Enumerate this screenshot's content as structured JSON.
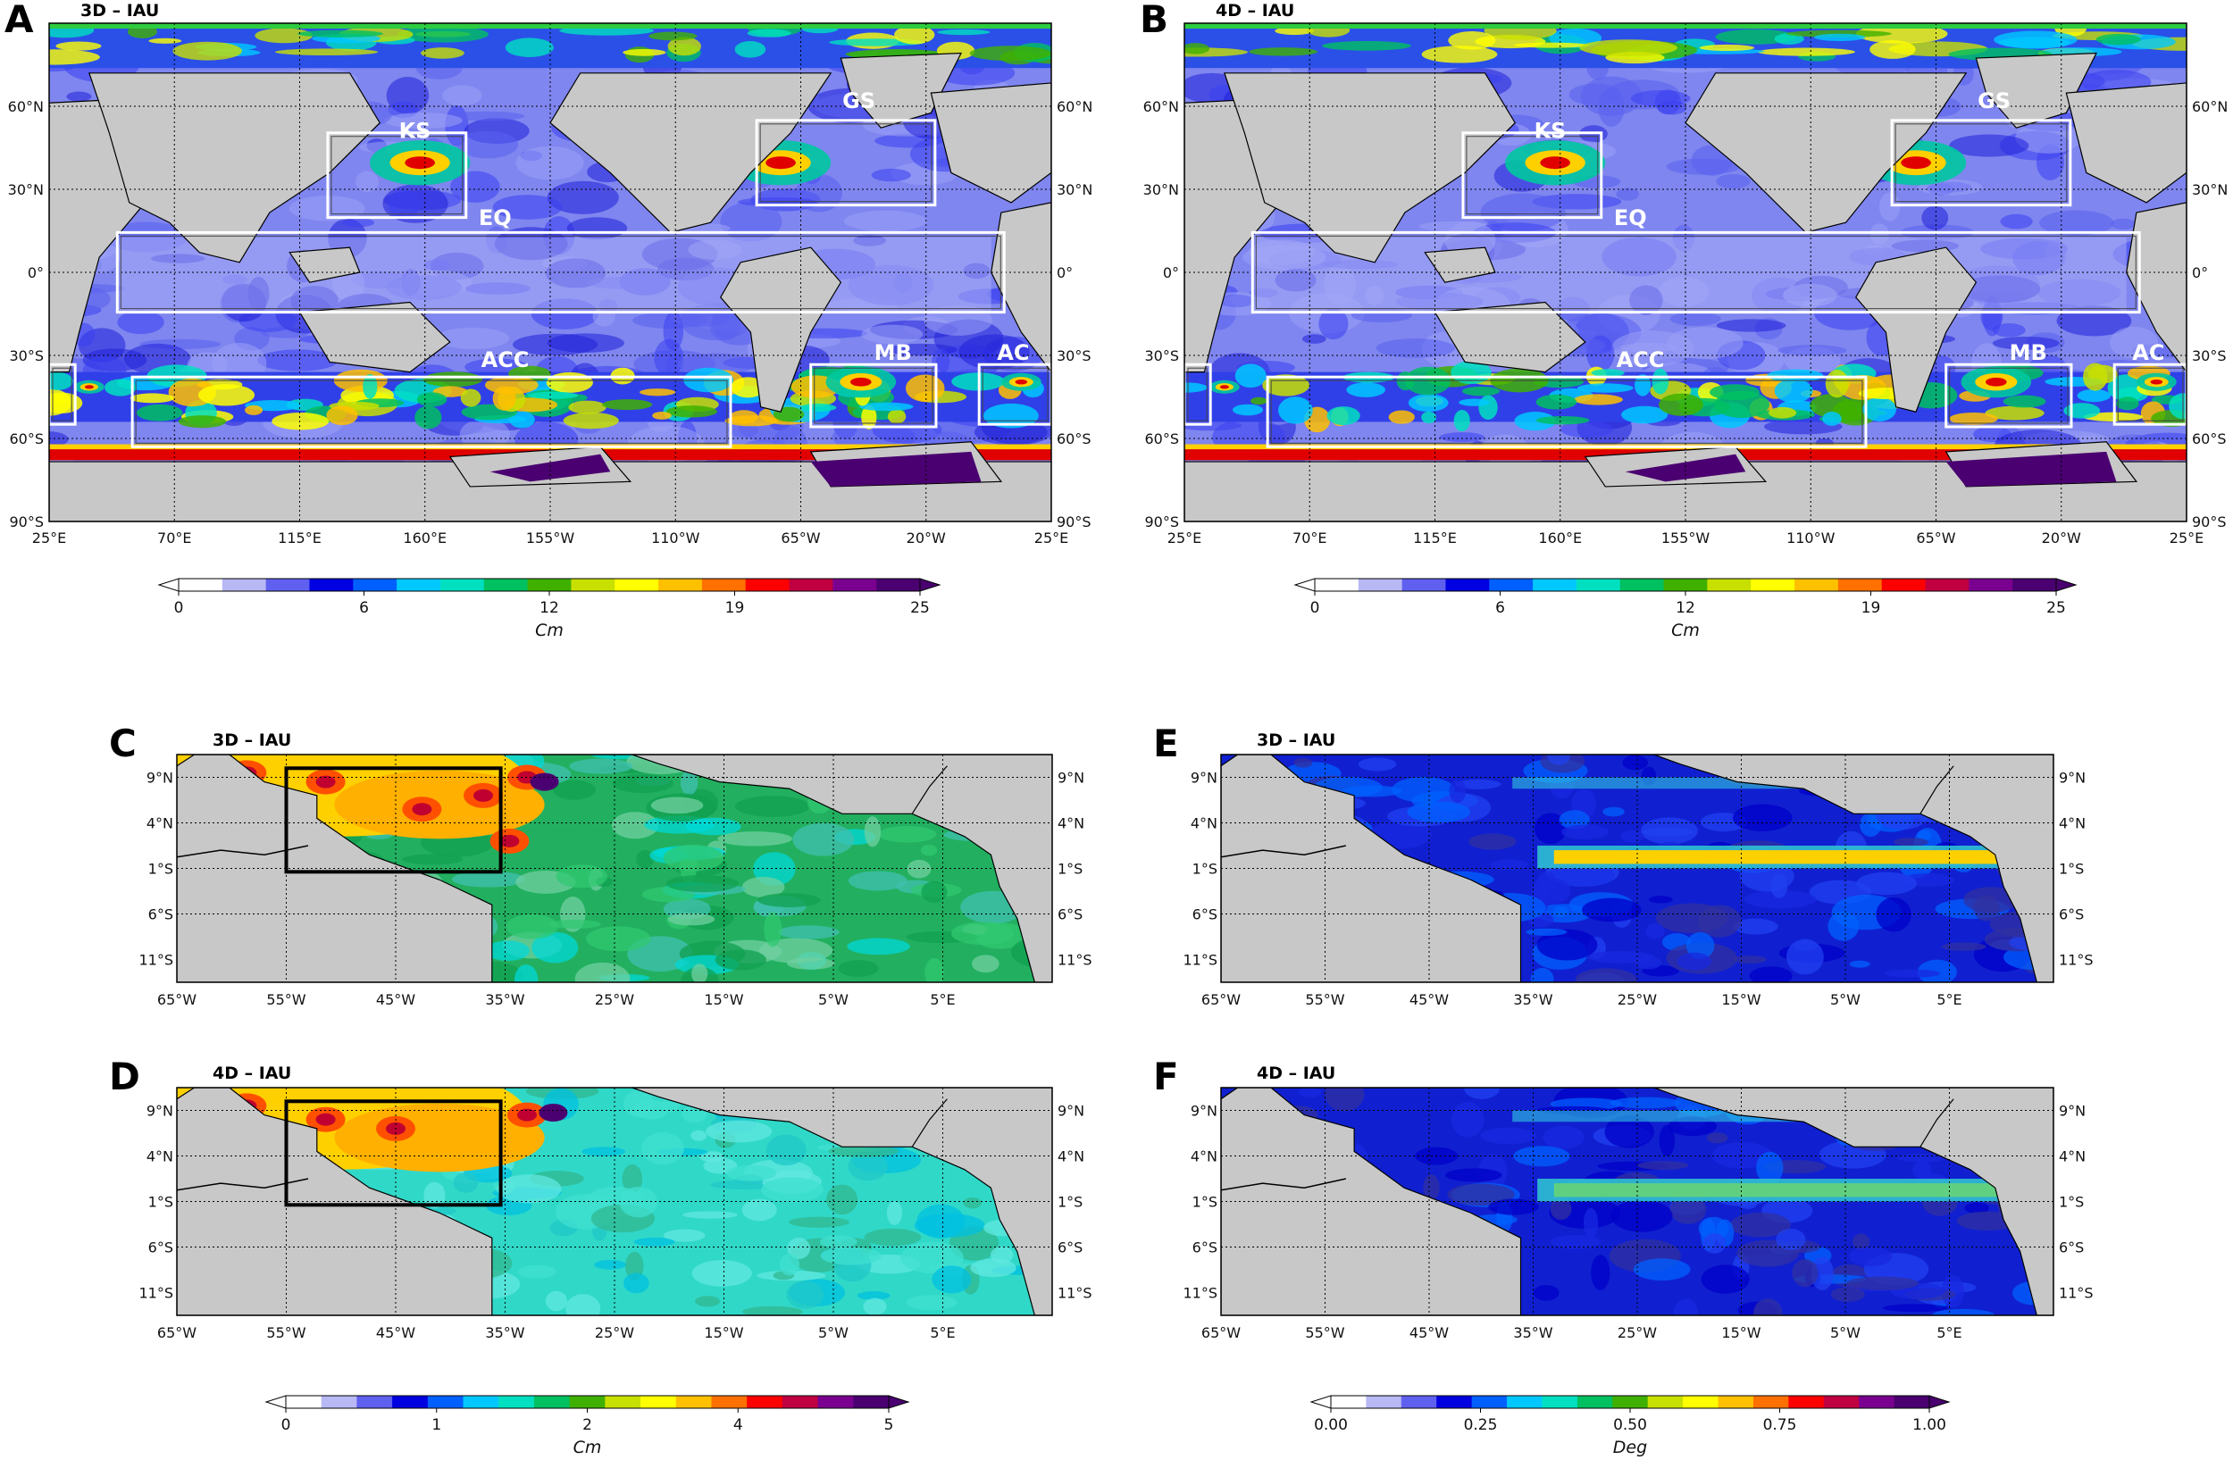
{
  "panels": [
    {
      "letter": "A",
      "title": "3D – IAU",
      "kind": "global",
      "lon_ticks": [
        "25°E",
        "70°E",
        "115°E",
        "160°E",
        "155°W",
        "110°W",
        "65°W",
        "20°W",
        "25°E"
      ],
      "lat_ticks": [
        "60°N",
        "30°N",
        "0°",
        "30°S",
        "60°S",
        "90°S"
      ],
      "regions": [
        "KS",
        "GS",
        "EQ",
        "ACC",
        "MB",
        "AC"
      ]
    },
    {
      "letter": "B",
      "title": "4D – IAU",
      "kind": "global",
      "lon_ticks": [
        "25°E",
        "70°E",
        "115°E",
        "160°E",
        "155°W",
        "110°W",
        "65°W",
        "20°W",
        "25°E"
      ],
      "lat_ticks": [
        "60°N",
        "30°N",
        "0°",
        "30°S",
        "60°S",
        "90°S"
      ],
      "regions": [
        "KS",
        "GS",
        "EQ",
        "ACC",
        "MB",
        "AC"
      ]
    },
    {
      "letter": "C",
      "title": "3D – IAU",
      "kind": "atlantic",
      "lon_ticks": [
        "65°W",
        "55°W",
        "45°W",
        "35°W",
        "25°W",
        "15°W",
        "5°W",
        "5°E"
      ],
      "lat_ticks": [
        "9°N",
        "4°N",
        "1°S",
        "6°S",
        "11°S"
      ]
    },
    {
      "letter": "E",
      "title": "3D – IAU",
      "kind": "atlantic",
      "lon_ticks": [
        "65°W",
        "55°W",
        "45°W",
        "35°W",
        "25°W",
        "15°W",
        "5°W",
        "5°E"
      ],
      "lat_ticks": [
        "9°N",
        "4°N",
        "1°S",
        "6°S",
        "11°S"
      ]
    },
    {
      "letter": "D",
      "title": "4D – IAU",
      "kind": "atlantic",
      "lon_ticks": [
        "65°W",
        "55°W",
        "45°W",
        "35°W",
        "25°W",
        "15°W",
        "5°W",
        "5°E"
      ],
      "lat_ticks": [
        "9°N",
        "4°N",
        "1°S",
        "6°S",
        "11°S"
      ]
    },
    {
      "letter": "F",
      "title": "4D – IAU",
      "kind": "atlantic",
      "lon_ticks": [
        "65°W",
        "55°W",
        "45°W",
        "35°W",
        "25°W",
        "15°W",
        "5°W",
        "5°E"
      ],
      "lat_ticks": [
        "9°N",
        "4°N",
        "1°S",
        "6°S",
        "11°S"
      ]
    }
  ],
  "colorbars": [
    {
      "for": "A",
      "unit": "Cm",
      "ticks": [
        "0",
        "6",
        "12",
        "19",
        "25"
      ]
    },
    {
      "for": "B",
      "unit": "Cm",
      "ticks": [
        "0",
        "6",
        "12",
        "19",
        "25"
      ]
    },
    {
      "for": "C-D",
      "unit": "Cm",
      "ticks": [
        "0",
        "1",
        "2",
        "4",
        "5"
      ]
    },
    {
      "for": "E-F",
      "unit": "Deg",
      "ticks": [
        "0.00",
        "0.25",
        "0.50",
        "0.75",
        "1.00"
      ]
    }
  ],
  "colors": {
    "land": "#c8c8c8",
    "ocean_low": "#7f86ef",
    "ocean_mid": "#2a2fe0",
    "box_global": "#ffffff",
    "box_atlantic": "#000000"
  },
  "colormap": [
    "#ffffff",
    "#b8b8f5",
    "#6060f0",
    "#0000e0",
    "#0060ff",
    "#00c8ff",
    "#00e0c0",
    "#00c060",
    "#40b000",
    "#c8e000",
    "#ffff00",
    "#ffc000",
    "#ff7000",
    "#ff0000",
    "#c00040",
    "#7a0090",
    "#4a0070"
  ]
}
